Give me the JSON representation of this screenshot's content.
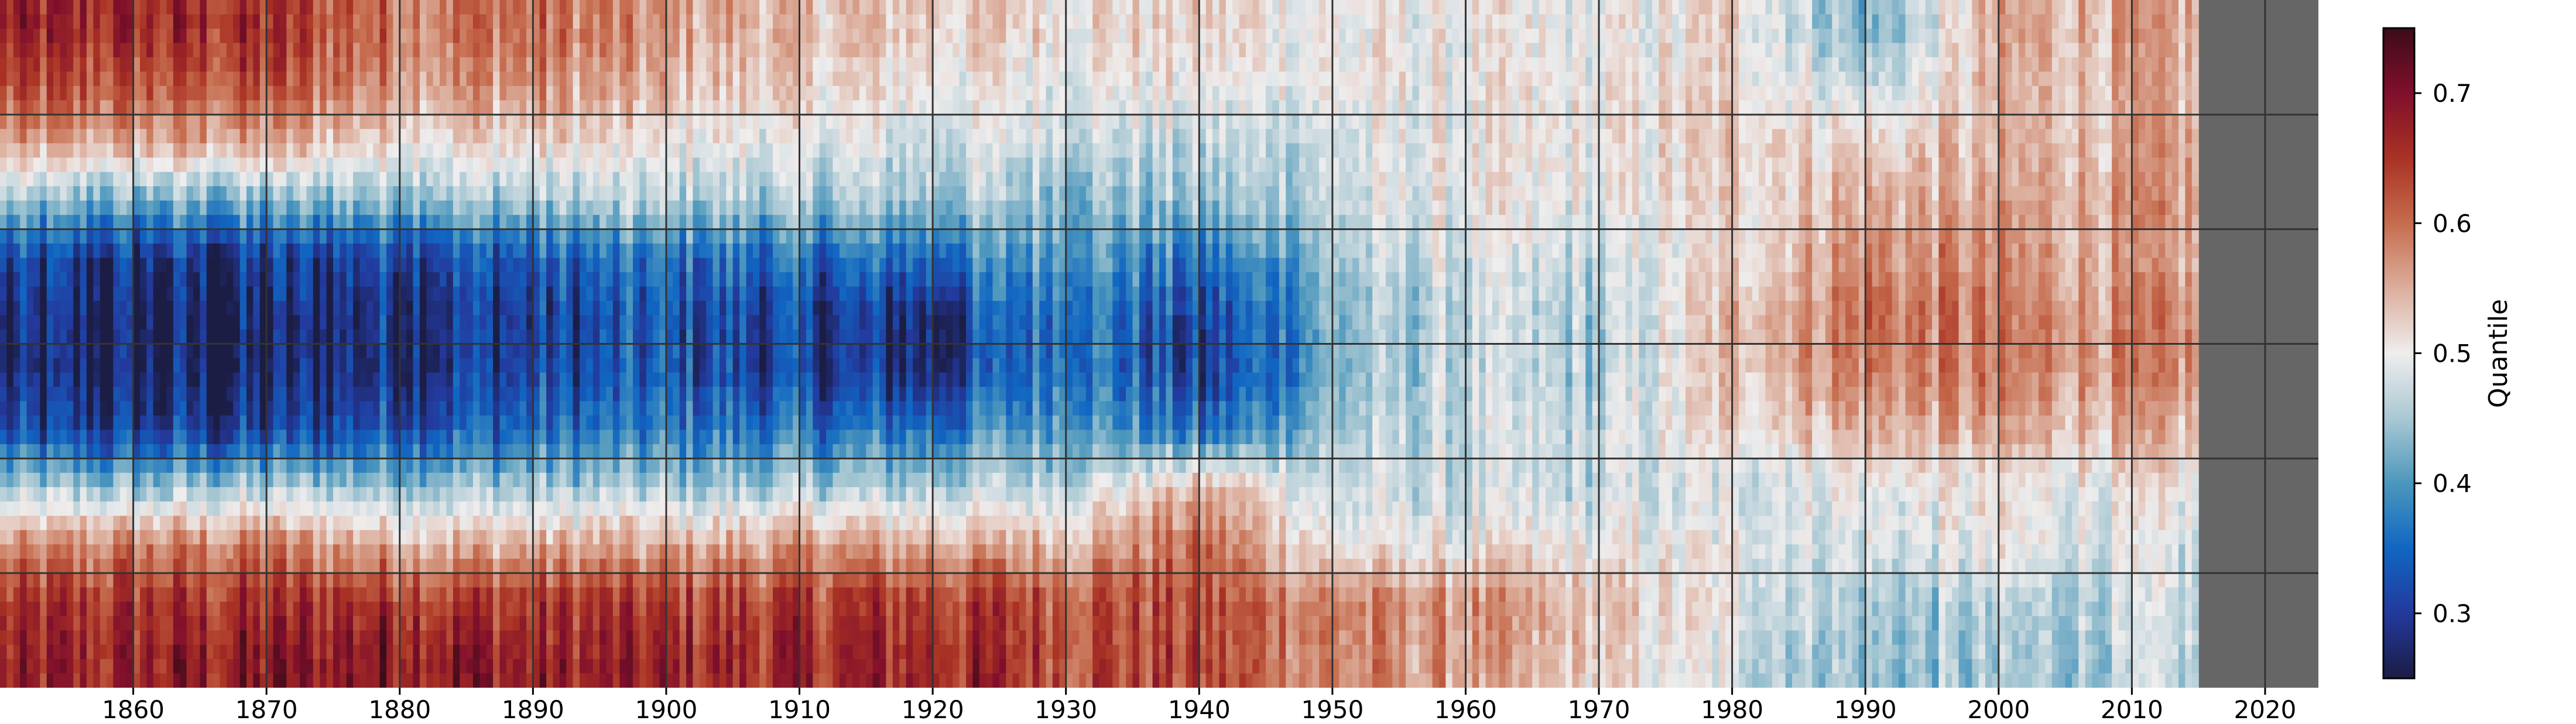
{
  "chart_data": {
    "type": "heatmap",
    "title": "",
    "xlabel": "",
    "ylabel": "",
    "xlim": [
      1850,
      2024
    ],
    "x_ticks": [
      "1860",
      "1870",
      "1880",
      "1890",
      "1900",
      "1910",
      "1920",
      "1930",
      "1940",
      "1950",
      "1960",
      "1970",
      "1980",
      "1990",
      "2000",
      "2010",
      "2020"
    ],
    "y_bands": 6,
    "grid": true,
    "data_end_year": 2015,
    "missing_color": "#666666",
    "decades": [
      1850,
      1860,
      1870,
      1880,
      1890,
      1900,
      1910,
      1920,
      1930,
      1940,
      1950,
      1960,
      1970,
      1980,
      1990,
      2000,
      2010
    ],
    "rows_top_to_bottom": [
      [
        0.66,
        0.66,
        0.65,
        0.6,
        0.6,
        0.56,
        0.54,
        0.53,
        0.52,
        0.52,
        0.5,
        0.5,
        0.49,
        0.52,
        0.42,
        0.55,
        0.55
      ],
      [
        0.62,
        0.62,
        0.62,
        0.57,
        0.57,
        0.54,
        0.52,
        0.5,
        0.5,
        0.5,
        0.5,
        0.5,
        0.5,
        0.52,
        0.47,
        0.54,
        0.54
      ],
      [
        0.55,
        0.55,
        0.55,
        0.52,
        0.52,
        0.5,
        0.49,
        0.48,
        0.48,
        0.46,
        0.48,
        0.5,
        0.5,
        0.53,
        0.52,
        0.54,
        0.55
      ],
      [
        0.44,
        0.42,
        0.42,
        0.45,
        0.45,
        0.46,
        0.45,
        0.45,
        0.44,
        0.44,
        0.47,
        0.5,
        0.49,
        0.52,
        0.55,
        0.55,
        0.56
      ],
      [
        0.3,
        0.29,
        0.29,
        0.33,
        0.33,
        0.36,
        0.35,
        0.36,
        0.42,
        0.35,
        0.45,
        0.48,
        0.47,
        0.52,
        0.58,
        0.57,
        0.55
      ],
      [
        0.26,
        0.26,
        0.26,
        0.3,
        0.3,
        0.33,
        0.3,
        0.28,
        0.39,
        0.3,
        0.43,
        0.47,
        0.45,
        0.55,
        0.6,
        0.58,
        0.57
      ],
      [
        0.26,
        0.26,
        0.26,
        0.3,
        0.31,
        0.33,
        0.3,
        0.28,
        0.39,
        0.29,
        0.43,
        0.47,
        0.45,
        0.54,
        0.59,
        0.58,
        0.57
      ],
      [
        0.31,
        0.3,
        0.3,
        0.34,
        0.35,
        0.37,
        0.36,
        0.36,
        0.42,
        0.35,
        0.45,
        0.47,
        0.47,
        0.52,
        0.55,
        0.55,
        0.54
      ],
      [
        0.45,
        0.44,
        0.45,
        0.45,
        0.45,
        0.45,
        0.45,
        0.46,
        0.47,
        0.55,
        0.47,
        0.47,
        0.47,
        0.48,
        0.5,
        0.5,
        0.5
      ],
      [
        0.56,
        0.58,
        0.58,
        0.55,
        0.55,
        0.55,
        0.56,
        0.55,
        0.55,
        0.6,
        0.5,
        0.5,
        0.5,
        0.5,
        0.48,
        0.5,
        0.48
      ],
      [
        0.64,
        0.65,
        0.65,
        0.66,
        0.64,
        0.64,
        0.64,
        0.65,
        0.63,
        0.62,
        0.58,
        0.57,
        0.53,
        0.5,
        0.45,
        0.45,
        0.47
      ],
      [
        0.66,
        0.67,
        0.68,
        0.7,
        0.67,
        0.66,
        0.66,
        0.67,
        0.64,
        0.63,
        0.58,
        0.56,
        0.52,
        0.48,
        0.44,
        0.44,
        0.46
      ]
    ],
    "colorbar": {
      "label": "Quantile",
      "range": [
        0.25,
        0.75
      ],
      "ticks": [
        "0.3",
        "0.4",
        "0.5",
        "0.6",
        "0.7"
      ],
      "tick_values": [
        0.3,
        0.4,
        0.5,
        0.6,
        0.7
      ],
      "colormap_stops": [
        [
          0.25,
          "#1b1d45"
        ],
        [
          0.3,
          "#23399c"
        ],
        [
          0.35,
          "#1066c2"
        ],
        [
          0.4,
          "#4c97bd"
        ],
        [
          0.45,
          "#a9c8d3"
        ],
        [
          0.5,
          "#efeded"
        ],
        [
          0.55,
          "#dcae9c"
        ],
        [
          0.6,
          "#c66c4e"
        ],
        [
          0.65,
          "#a93224"
        ],
        [
          0.7,
          "#800f2c"
        ],
        [
          0.75,
          "#3c0c18"
        ]
      ]
    }
  }
}
